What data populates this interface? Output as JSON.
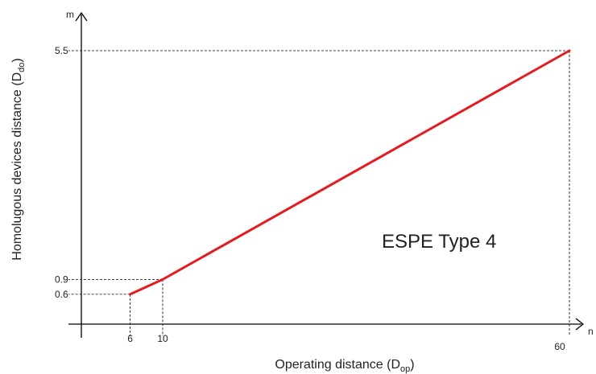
{
  "chart_data": {
    "type": "line",
    "title": "",
    "xlabel": "Operating distance (D",
    "xlabel_sub": "op",
    "xlabel_close": ")",
    "ylabel": "Homolugous devices distance (D",
    "ylabel_sub": "do",
    "ylabel_close": ")",
    "x_unit": "n",
    "y_unit": "m",
    "xlim": [
      0,
      60
    ],
    "ylim": [
      0,
      5.5
    ],
    "x_ticks": [
      6,
      10,
      60
    ],
    "y_ticks": [
      0.6,
      0.9,
      5.5
    ],
    "series": [
      {
        "color": "#e8191f",
        "points": [
          [
            6,
            0.6
          ],
          [
            10,
            0.9
          ],
          [
            60,
            5.5
          ]
        ]
      }
    ],
    "annotations": [
      {
        "text": "ESPE Type 4"
      }
    ],
    "grid": false,
    "legend": "none"
  }
}
